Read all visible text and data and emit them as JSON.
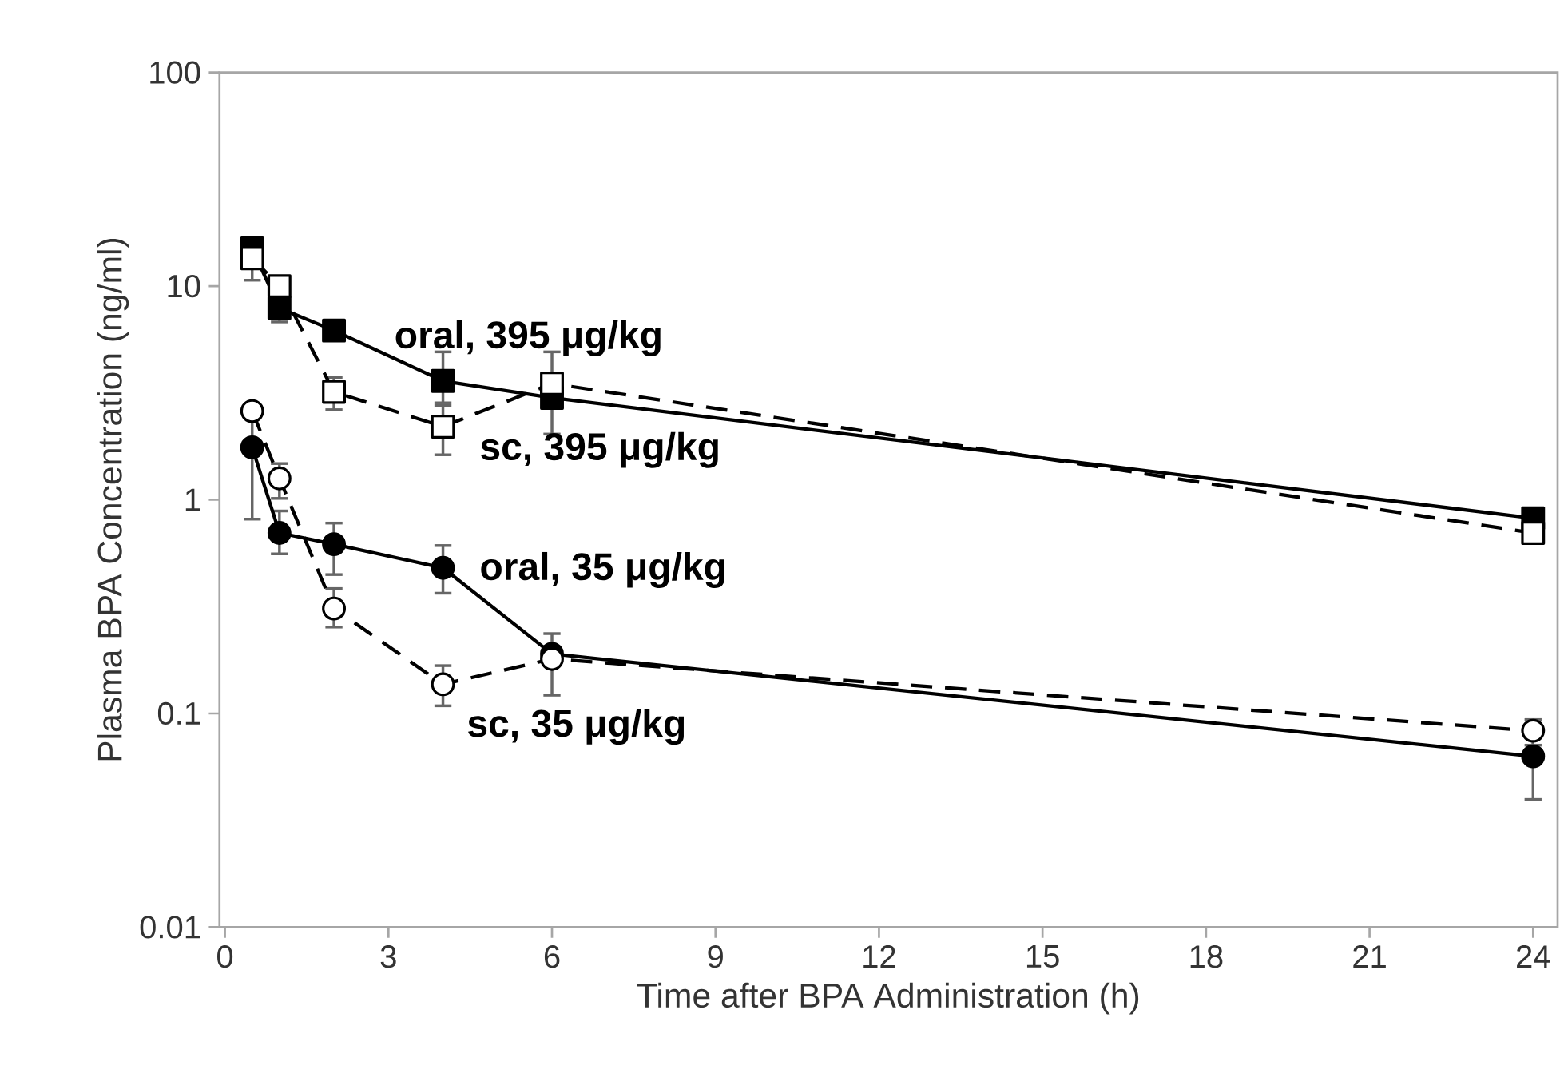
{
  "chart_data": {
    "type": "line",
    "xlabel": "Time after BPA Administration (h)",
    "ylabel": "Plasma BPA Concentration (ng/ml)",
    "x": [
      0.5,
      1,
      2,
      4,
      6,
      24
    ],
    "log": "y",
    "xlim": [
      -0.1,
      24.45
    ],
    "ylim": [
      0.01,
      100
    ],
    "xticks": [
      0,
      3,
      6,
      9,
      12,
      15,
      18,
      21,
      24
    ],
    "yticks": [
      0.01,
      0.1,
      1,
      10,
      100
    ],
    "grid": false,
    "series": [
      {
        "name": "oral, 395 μg/kg",
        "color": "#000000",
        "marker": "square",
        "line_style": "solid",
        "values": [
          15,
          7.9,
          6.2,
          3.6,
          3.0,
          0.82
        ],
        "errors": [
          null,
          [
            6.7,
            9
          ],
          null,
          [
            2.8,
            5.0
          ],
          null,
          null
        ]
      },
      {
        "name": "sc, 395 μg/kg",
        "color": "#000000",
        "marker": "square",
        "line_style": "dashed",
        "values": [
          13.5,
          10,
          3.2,
          2.2,
          3.5,
          0.7
        ],
        "errors": [
          [
            10.5,
            15
          ],
          null,
          [
            2.6,
            3.8
          ],
          [
            1.6,
            2.8
          ],
          [
            2.0,
            5.0
          ],
          null
        ]
      },
      {
        "name": "oral, 35 μg/kg",
        "color": "#000000",
        "marker": "circle",
        "line_style": "solid",
        "values": [
          1.76,
          0.7,
          0.62,
          0.48,
          0.19,
          0.063
        ],
        "errors": [
          [
            0.8,
            2.5
          ],
          [
            0.55,
            0.9
          ],
          [
            0.44,
            0.79
          ],
          [
            0.36,
            0.62
          ],
          [
            0.12,
            0.24
          ],
          [
            0.039,
            0.08
          ]
        ]
      },
      {
        "name": "sc, 35 μg/kg",
        "color": "#000000",
        "marker": "circle",
        "line_style": "dashed",
        "values": [
          2.6,
          1.26,
          0.31,
          0.137,
          0.18,
          0.083
        ],
        "errors": [
          null,
          [
            1.0,
            1.5
          ],
          [
            0.25,
            0.39
          ],
          [
            0.107,
            0.17
          ],
          null,
          [
            0.07,
            0.095
          ]
        ]
      }
    ]
  }
}
